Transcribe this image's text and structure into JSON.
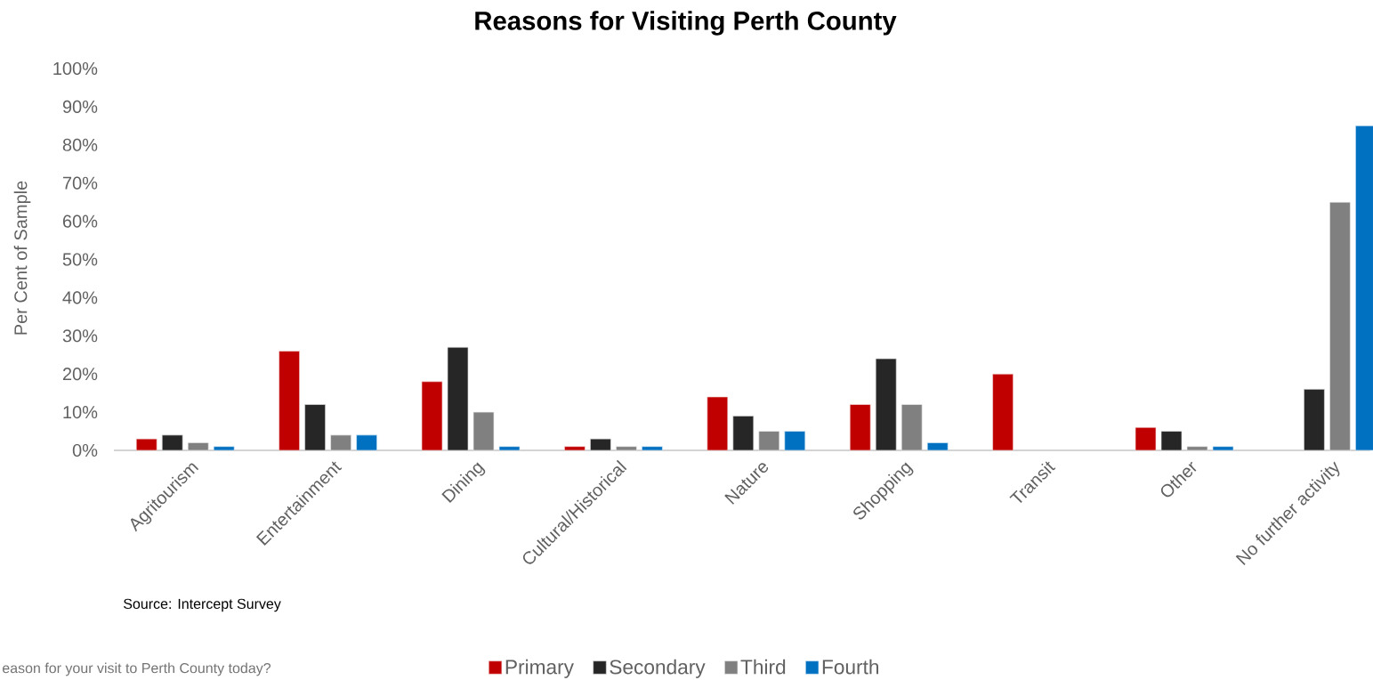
{
  "chart_data": {
    "type": "bar",
    "title": "Reasons for Visiting Perth County",
    "ylabel": "Per Cent of Sample",
    "annotations": [
      "Source: Intercept Survey",
      "eason for your visit to Perth County today?"
    ],
    "categories": [
      "Agritourism",
      "Entertainment",
      "Dining",
      "Cultural/Historical",
      "Nature",
      "Shopping",
      "Transit",
      "Other",
      "No further activity"
    ],
    "series": [
      {
        "name": "Primary",
        "color": "#c00000",
        "values": [
          3,
          26,
          18,
          1,
          14,
          12,
          20,
          6,
          null
        ]
      },
      {
        "name": "Secondary",
        "color": "#262626",
        "values": [
          4,
          12,
          27,
          3,
          9,
          24,
          null,
          5,
          16
        ]
      },
      {
        "name": "Third",
        "color": "#808080",
        "values": [
          2,
          4,
          10,
          1,
          5,
          12,
          null,
          1,
          65
        ]
      },
      {
        "name": "Fourth",
        "color": "#0070c0",
        "values": [
          1,
          4,
          1,
          1,
          5,
          2,
          null,
          1,
          85
        ]
      }
    ],
    "ylim": [
      0,
      100
    ],
    "yticks": [
      {
        "value": 0,
        "label": "0%"
      },
      {
        "value": 10,
        "label": "10%"
      },
      {
        "value": 20,
        "label": "20%"
      },
      {
        "value": 30,
        "label": "30%"
      },
      {
        "value": 40,
        "label": "40%"
      },
      {
        "value": 50,
        "label": "50%"
      },
      {
        "value": 60,
        "label": "60%"
      },
      {
        "value": 70,
        "label": "70%"
      },
      {
        "value": 80,
        "label": "80%"
      },
      {
        "value": 90,
        "label": "90%"
      },
      {
        "value": 100,
        "label": "100%"
      }
    ],
    "legend": "bottom"
  }
}
